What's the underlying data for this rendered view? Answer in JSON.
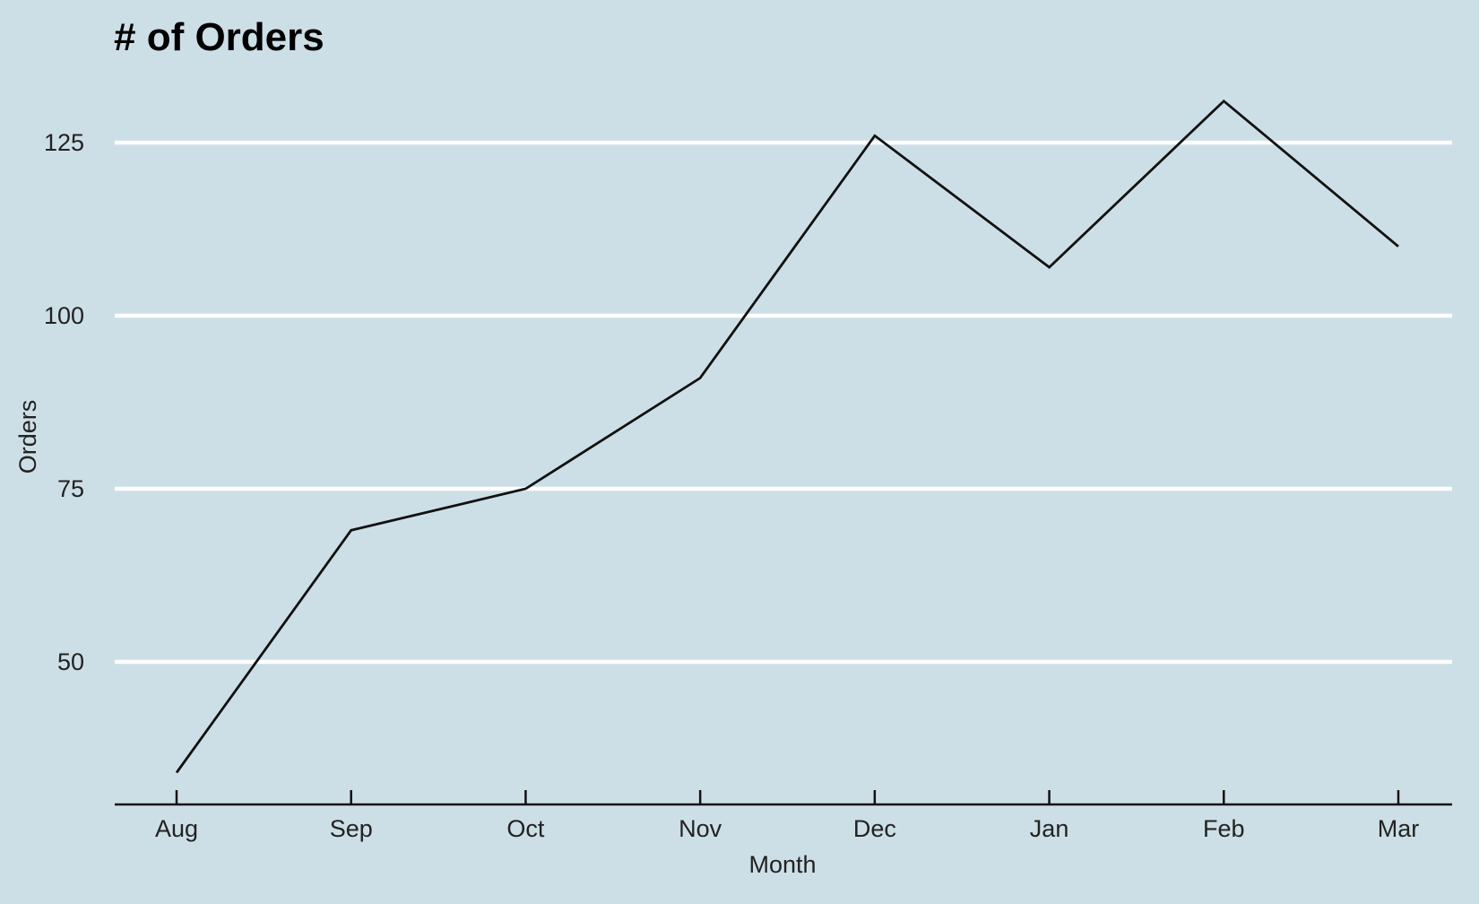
{
  "chart_data": {
    "type": "line",
    "title": "# of Orders",
    "xlabel": "Month",
    "ylabel": "Orders",
    "categories": [
      "Aug",
      "Sep",
      "Oct",
      "Nov",
      "Dec",
      "Jan",
      "Feb",
      "Mar"
    ],
    "values": [
      34,
      69,
      75,
      91,
      126,
      107,
      131,
      110
    ],
    "yticks": [
      50,
      75,
      100,
      125
    ],
    "ylim": [
      29,
      137
    ],
    "grid": "horizontal",
    "legend": "none",
    "colors": {
      "background": "#cddfe6",
      "gridline": "#ffffff",
      "line": "#111111",
      "axis": "#111111"
    }
  }
}
